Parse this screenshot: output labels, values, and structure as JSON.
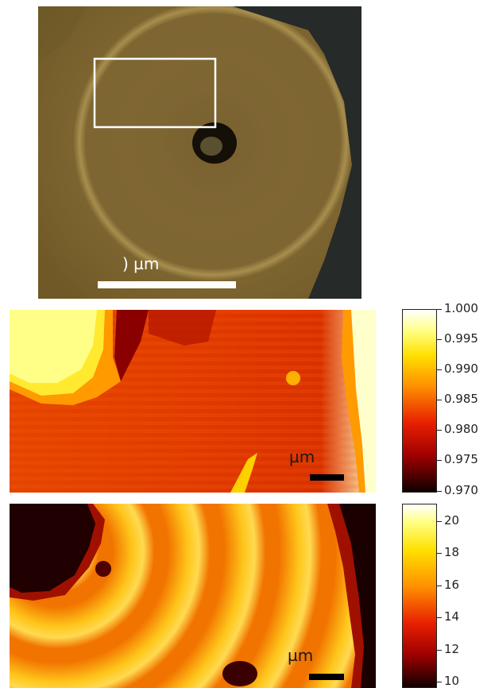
{
  "panel_a": {
    "scale_label": ") µm"
  },
  "panel_b": {
    "scale_label": "µm",
    "colorbar_ticks": [
      "1.000",
      "0.995",
      "0.990",
      "0.985",
      "0.980",
      "0.975",
      "0.970"
    ]
  },
  "panel_c": {
    "scale_label": "µm",
    "colorbar_ticks": [
      "20",
      "18",
      "16",
      "14",
      "12",
      "10"
    ]
  },
  "colors": {
    "hot_dark": "#1a0000",
    "hot_red": "#d82a00",
    "hot_orange": "#f58a00",
    "hot_yellow": "#fff000",
    "hot_white": "#ffffee"
  }
}
